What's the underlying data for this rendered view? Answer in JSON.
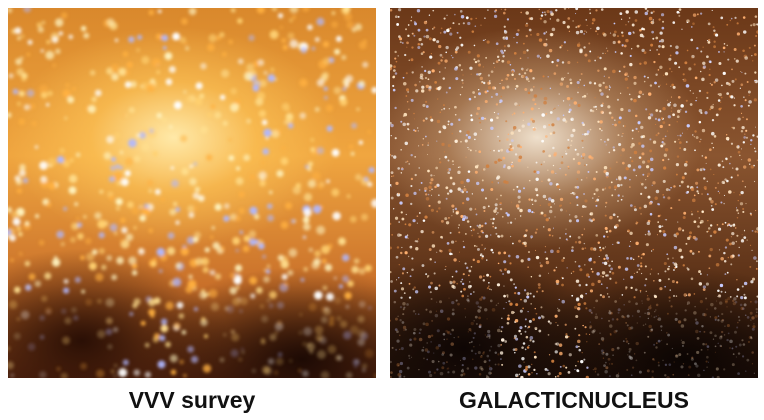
{
  "panels": [
    {
      "caption": "VVV survey"
    },
    {
      "caption": "GALACTICNUCLEUS"
    }
  ]
}
